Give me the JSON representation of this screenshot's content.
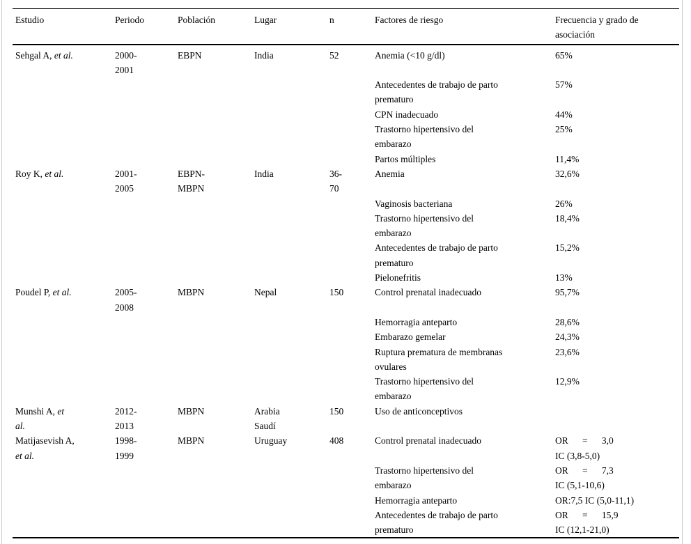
{
  "table": {
    "columns": [
      "Estudio",
      "Periodo",
      "Población",
      "Lugar",
      "n",
      "Factores de riesgo",
      "Frecuencia y grado de\nasociación"
    ],
    "studies": [
      {
        "estudio_lines": [
          [
            {
              "text": "Sehgal A, "
            },
            {
              "text": "et al.",
              "italic": true
            }
          ]
        ],
        "periodo": "2000-\n2001",
        "poblacion": "EBPN",
        "lugar": "India",
        "n": "52",
        "factores": [
          {
            "factor": "Anemia (<10 g/dl)",
            "frecuencia": "65%"
          },
          {
            "factor": "Antecedentes de trabajo de parto\nprematuro",
            "frecuencia": "57%"
          },
          {
            "factor": "CPN inadecuado",
            "frecuencia": "44%"
          },
          {
            "factor": "Trastorno hipertensivo del\nembarazo",
            "frecuencia": "25%"
          },
          {
            "factor": "Partos múltiples",
            "frecuencia": "11,4%"
          }
        ]
      },
      {
        "estudio_lines": [
          [
            {
              "text": "Roy K, "
            },
            {
              "text": "et al.",
              "italic": true
            }
          ]
        ],
        "periodo": "2001-\n2005",
        "poblacion": "EBPN-\nMBPN",
        "lugar": "India",
        "n": "36-\n70",
        "factores": [
          {
            "factor": "Anemia",
            "frecuencia": "32,6%"
          },
          {
            "factor": "Vaginosis bacteriana",
            "frecuencia": "26%"
          },
          {
            "factor": "Trastorno hipertensivo del\nembarazo",
            "frecuencia": "18,4%"
          },
          {
            "factor": "Antecedentes de trabajo de parto\nprematuro",
            "frecuencia": "15,2%"
          },
          {
            "factor": "Pielonefritis",
            "frecuencia": "13%"
          }
        ]
      },
      {
        "estudio_lines": [
          [
            {
              "text": "Poudel P, "
            },
            {
              "text": "et al.",
              "italic": true
            }
          ]
        ],
        "periodo": "2005-\n2008",
        "poblacion": "MBPN",
        "lugar": "Nepal",
        "n": "150",
        "factores": [
          {
            "factor": "Control prenatal inadecuado",
            "frecuencia": "95,7%"
          },
          {
            "factor": "Hemorragia anteparto",
            "frecuencia": "28,6%"
          },
          {
            "factor": "Embarazo gemelar",
            "frecuencia": "24,3%"
          },
          {
            "factor": "Ruptura prematura de membranas\novulares",
            "frecuencia": "23,6%"
          },
          {
            "factor": "Trastorno hipertensivo del\nembarazo",
            "frecuencia": "12,9%"
          }
        ]
      },
      {
        "estudio_lines": [
          [
            {
              "text": "Munshi A, "
            },
            {
              "text": "et",
              "italic": true
            }
          ],
          [
            {
              "text": "al.",
              "italic": true
            }
          ]
        ],
        "periodo": "2012-\n2013",
        "poblacion": "MBPN",
        "lugar": "Arabia\nSaudí",
        "n": "150",
        "factores": [
          {
            "factor": "Uso de anticonceptivos",
            "frecuencia": ""
          }
        ]
      },
      {
        "estudio_lines": [
          [
            {
              "text": "Matijasevish A,"
            }
          ],
          [
            {
              "text": "et al.",
              "italic": true
            }
          ]
        ],
        "periodo": "1998-\n1999",
        "poblacion": "MBPN",
        "lugar": "Uruguay",
        "n": "408",
        "factores": [
          {
            "factor": "Control prenatal inadecuado",
            "frecuencia": "OR      =      3,0\nIC (3,8-5,0)"
          },
          {
            "factor": "Trastorno hipertensivo del\nembarazo",
            "frecuencia": "OR      =      7,3\nIC (5,1-10,6)"
          },
          {
            "factor": "Hemorragia anteparto",
            "frecuencia": "OR:7,5 IC (5,0-11,1)"
          },
          {
            "factor": "Antecedentes de trabajo de parto\nprematuro",
            "frecuencia": "OR      =      15,9\nIC (12,1-21,0)"
          }
        ]
      }
    ]
  }
}
